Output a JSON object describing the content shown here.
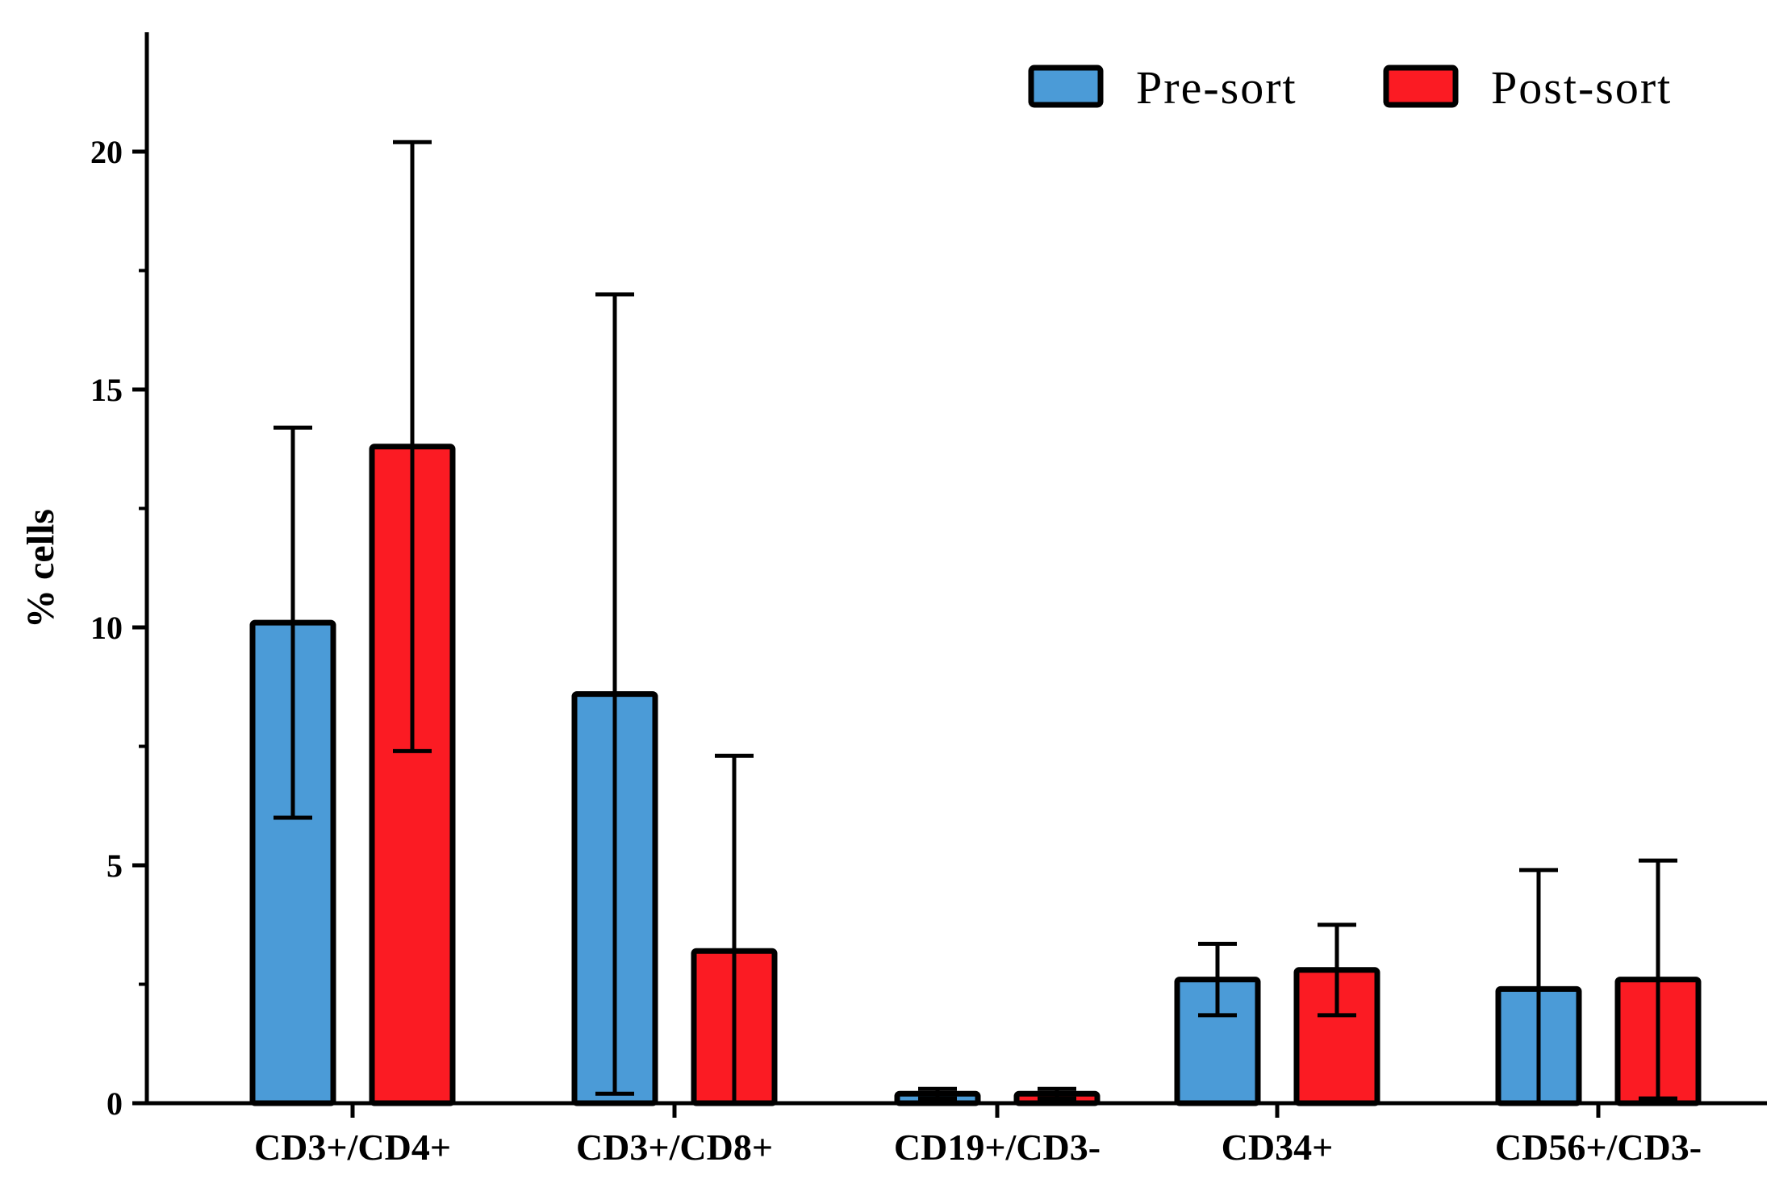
{
  "chart_data": {
    "type": "bar",
    "title": "",
    "xlabel": "",
    "ylabel": "% cells",
    "ylim": [
      0,
      22.5
    ],
    "yticks": [
      0,
      5,
      10,
      15,
      20
    ],
    "ytick_labels": [
      "0",
      "5",
      "10",
      "15",
      "20"
    ],
    "grid": false,
    "legend_position": "top-right",
    "categories": [
      "CD3+/CD4+",
      "CD3+/CD8+",
      "CD19+/CD3-",
      "CD34+",
      "CD56+/CD3-"
    ],
    "series": [
      {
        "name": "Pre-sort",
        "color": "#4b9bd7",
        "values": [
          10.1,
          8.6,
          0.2,
          2.6,
          2.4
        ],
        "error": [
          4.1,
          8.4,
          0.1,
          0.75,
          2.5
        ]
      },
      {
        "name": "Post-sort",
        "color": "#fb1b23",
        "values": [
          13.8,
          3.2,
          0.2,
          2.8,
          2.6
        ],
        "error": [
          6.4,
          4.1,
          0.1,
          0.95,
          2.5
        ]
      }
    ]
  }
}
